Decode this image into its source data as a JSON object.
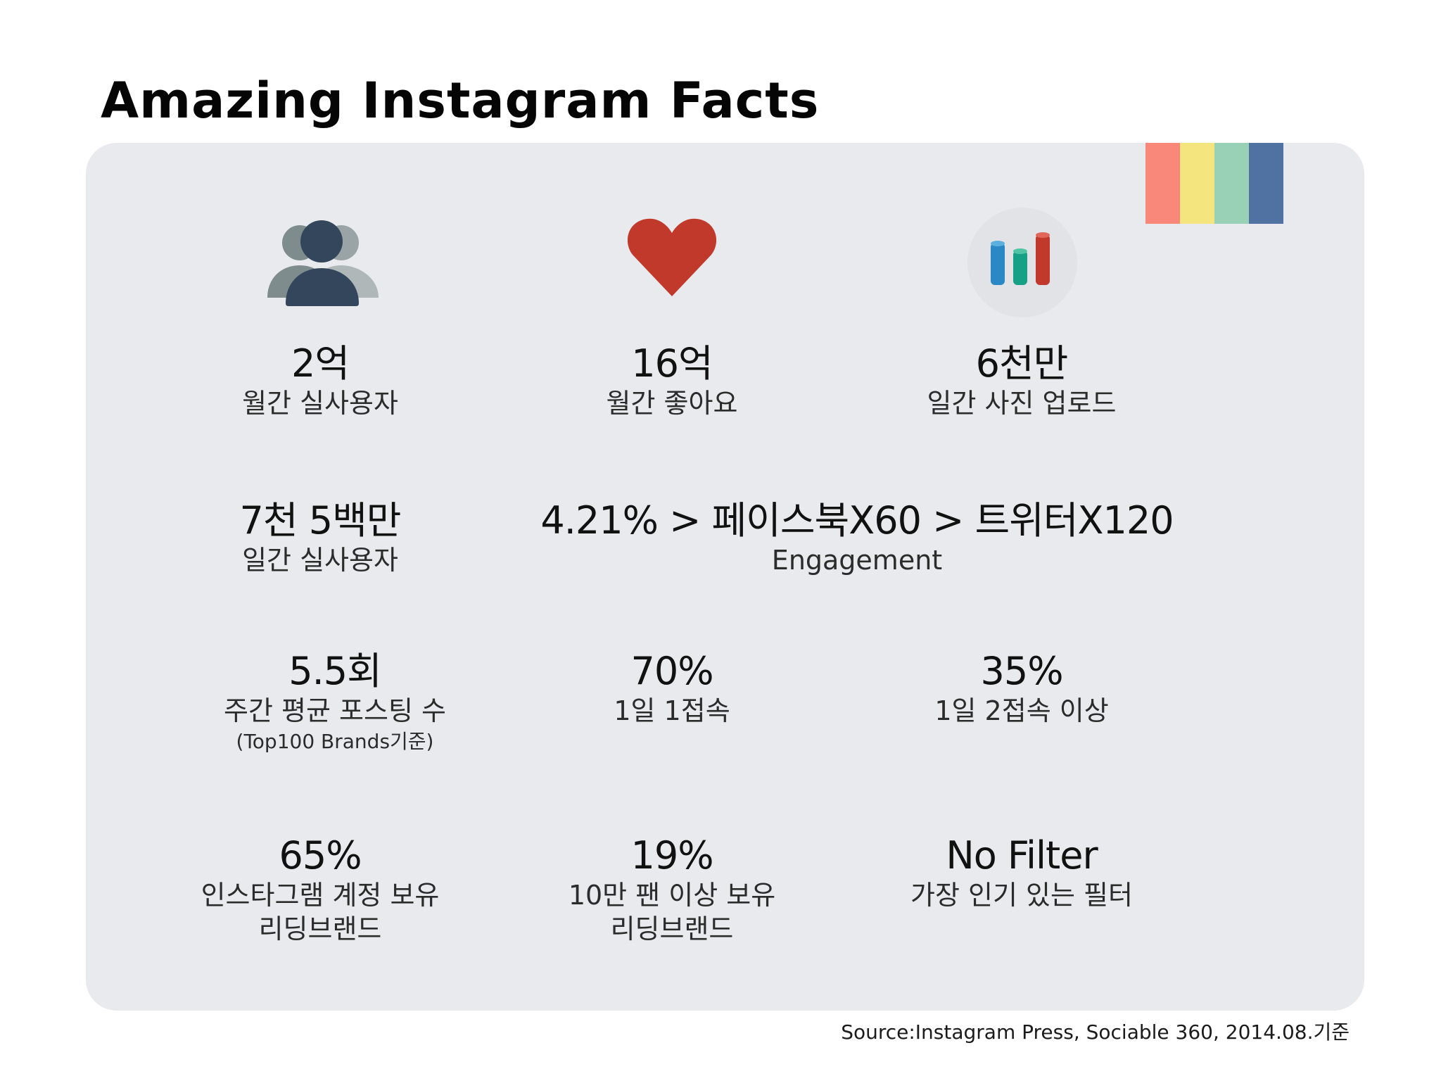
{
  "title": "Amazing Instagram Facts",
  "colors": {
    "card_background": "#e9eaed",
    "stripes": [
      "#f9877a",
      "#f5e57e",
      "#98d1b5",
      "#4f72a2"
    ],
    "users_icon_front": "#34465c",
    "users_icon_back": "#7f8c8d",
    "heart_icon": "#c0392b",
    "chart_bar_blue": "#2a88c5",
    "chart_bar_green": "#16a085",
    "chart_bar_red": "#c0392b"
  },
  "icons": {
    "users": "users-icon",
    "likes": "heart-icon",
    "uploads": "bar-chart-icon"
  },
  "facts": {
    "monthly_users": {
      "value": "2억",
      "label": "월간 실사용자"
    },
    "monthly_likes": {
      "value": "16억",
      "label": "월간 좋아요"
    },
    "daily_uploads": {
      "value": "6천만",
      "label": "일간 사진 업로드"
    },
    "daily_users": {
      "value": "7천 5백만",
      "label": "일간 실사용자"
    },
    "engagement": {
      "value": "4.21% > 페이스북X60 > 트위터X120",
      "label": "Engagement"
    },
    "weekly_posts": {
      "value": "5.5회",
      "label": "주간 평균 포스팅 수",
      "note": "(Top100 Brands기준)"
    },
    "daily_once": {
      "value": "70%",
      "label": "1일 1접속"
    },
    "daily_twice": {
      "value": "35%",
      "label": "1일 2접속 이상"
    },
    "brands_with_account": {
      "value": "65%",
      "label": "인스타그램 계정 보유",
      "label2": "리딩브랜드"
    },
    "brands_100k_fans": {
      "value": "19%",
      "label": "10만 팬 이상 보유",
      "label2": "리딩브랜드"
    },
    "popular_filter": {
      "value": "No Filter",
      "label": "가장 인기 있는 필터"
    }
  },
  "source": "Source:Instagram Press, Sociable 360, 2014.08.기준"
}
